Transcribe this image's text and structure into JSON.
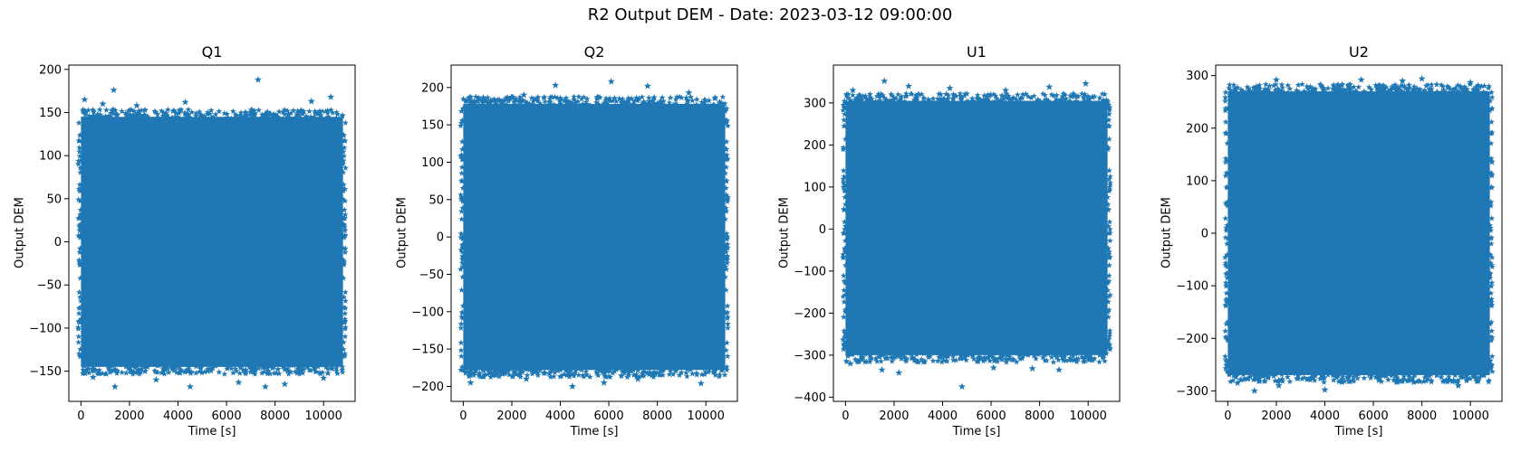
{
  "figure": {
    "title": "R2 Output DEM - Date: 2023-03-12 09:00:00"
  },
  "colors": {
    "series": "#1f77b4",
    "axes": "#000000",
    "background": "#ffffff"
  },
  "chart_data": [
    {
      "type": "scatter",
      "marker": "star",
      "title": "Q1",
      "xlabel": "Time [s]",
      "ylabel": "Output DEM",
      "xlim": [
        -500,
        11300
      ],
      "ylim": [
        -185,
        205
      ],
      "xticks": [
        0,
        2000,
        4000,
        6000,
        8000,
        10000
      ],
      "yticks": [
        -150,
        -100,
        -50,
        0,
        50,
        100,
        150,
        200
      ],
      "x_range": [
        0,
        10800
      ],
      "band": {
        "lower": -145,
        "upper": 145
      },
      "outliers": [
        [
          150,
          165
        ],
        [
          900,
          160
        ],
        [
          1350,
          176
        ],
        [
          2300,
          158
        ],
        [
          4300,
          162
        ],
        [
          7300,
          188
        ],
        [
          9500,
          163
        ],
        [
          10300,
          168
        ],
        [
          500,
          -157
        ],
        [
          1400,
          -168
        ],
        [
          3100,
          -160
        ],
        [
          4500,
          -168
        ],
        [
          6500,
          -163
        ],
        [
          7600,
          -168
        ],
        [
          8400,
          -165
        ],
        [
          10000,
          -158
        ]
      ]
    },
    {
      "type": "scatter",
      "marker": "star",
      "title": "Q2",
      "xlabel": "Time [s]",
      "ylabel": "Output DEM",
      "xlim": [
        -500,
        11300
      ],
      "ylim": [
        -220,
        230
      ],
      "xticks": [
        0,
        2000,
        4000,
        6000,
        8000,
        10000
      ],
      "yticks": [
        -200,
        -150,
        -100,
        -50,
        0,
        50,
        100,
        150,
        200
      ],
      "x_range": [
        0,
        10800
      ],
      "band": {
        "lower": -178,
        "upper": 178
      },
      "outliers": [
        [
          600,
          182
        ],
        [
          2500,
          190
        ],
        [
          3800,
          203
        ],
        [
          6100,
          208
        ],
        [
          7600,
          202
        ],
        [
          9300,
          193
        ],
        [
          300,
          -195
        ],
        [
          1200,
          -185
        ],
        [
          2600,
          -190
        ],
        [
          4500,
          -200
        ],
        [
          5800,
          -195
        ],
        [
          7200,
          -190
        ],
        [
          9800,
          -196
        ]
      ]
    },
    {
      "type": "scatter",
      "marker": "star",
      "title": "U1",
      "xlabel": "Time [s]",
      "ylabel": "Output DEM",
      "xlim": [
        -500,
        11300
      ],
      "ylim": [
        -410,
        390
      ],
      "xticks": [
        0,
        2000,
        4000,
        6000,
        8000,
        10000
      ],
      "yticks": [
        -400,
        -300,
        -200,
        -100,
        0,
        100,
        200,
        300
      ],
      "x_range": [
        0,
        10800
      ],
      "band": {
        "lower": -300,
        "upper": 305
      },
      "outliers": [
        [
          300,
          330
        ],
        [
          1600,
          352
        ],
        [
          2600,
          340
        ],
        [
          4300,
          335
        ],
        [
          6600,
          330
        ],
        [
          8400,
          338
        ],
        [
          9900,
          346
        ],
        [
          200,
          -320
        ],
        [
          1500,
          -335
        ],
        [
          2200,
          -342
        ],
        [
          4800,
          -375
        ],
        [
          6100,
          -330
        ],
        [
          7700,
          -332
        ],
        [
          8800,
          -335
        ]
      ]
    },
    {
      "type": "scatter",
      "marker": "star",
      "title": "U2",
      "xlabel": "Time [s]",
      "ylabel": "Output DEM",
      "xlim": [
        -500,
        11300
      ],
      "ylim": [
        -320,
        320
      ],
      "xticks": [
        0,
        2000,
        4000,
        6000,
        8000,
        10000
      ],
      "yticks": [
        -300,
        -200,
        -100,
        0,
        100,
        200,
        300
      ],
      "x_range": [
        0,
        10800
      ],
      "band": {
        "lower": -270,
        "upper": 270
      },
      "outliers": [
        [
          2000,
          292
        ],
        [
          5500,
          292
        ],
        [
          7200,
          290
        ],
        [
          8000,
          294
        ],
        [
          10000,
          287
        ],
        [
          400,
          -285
        ],
        [
          1100,
          -300
        ],
        [
          2100,
          -290
        ],
        [
          4000,
          -298
        ],
        [
          9500,
          -290
        ]
      ]
    }
  ]
}
